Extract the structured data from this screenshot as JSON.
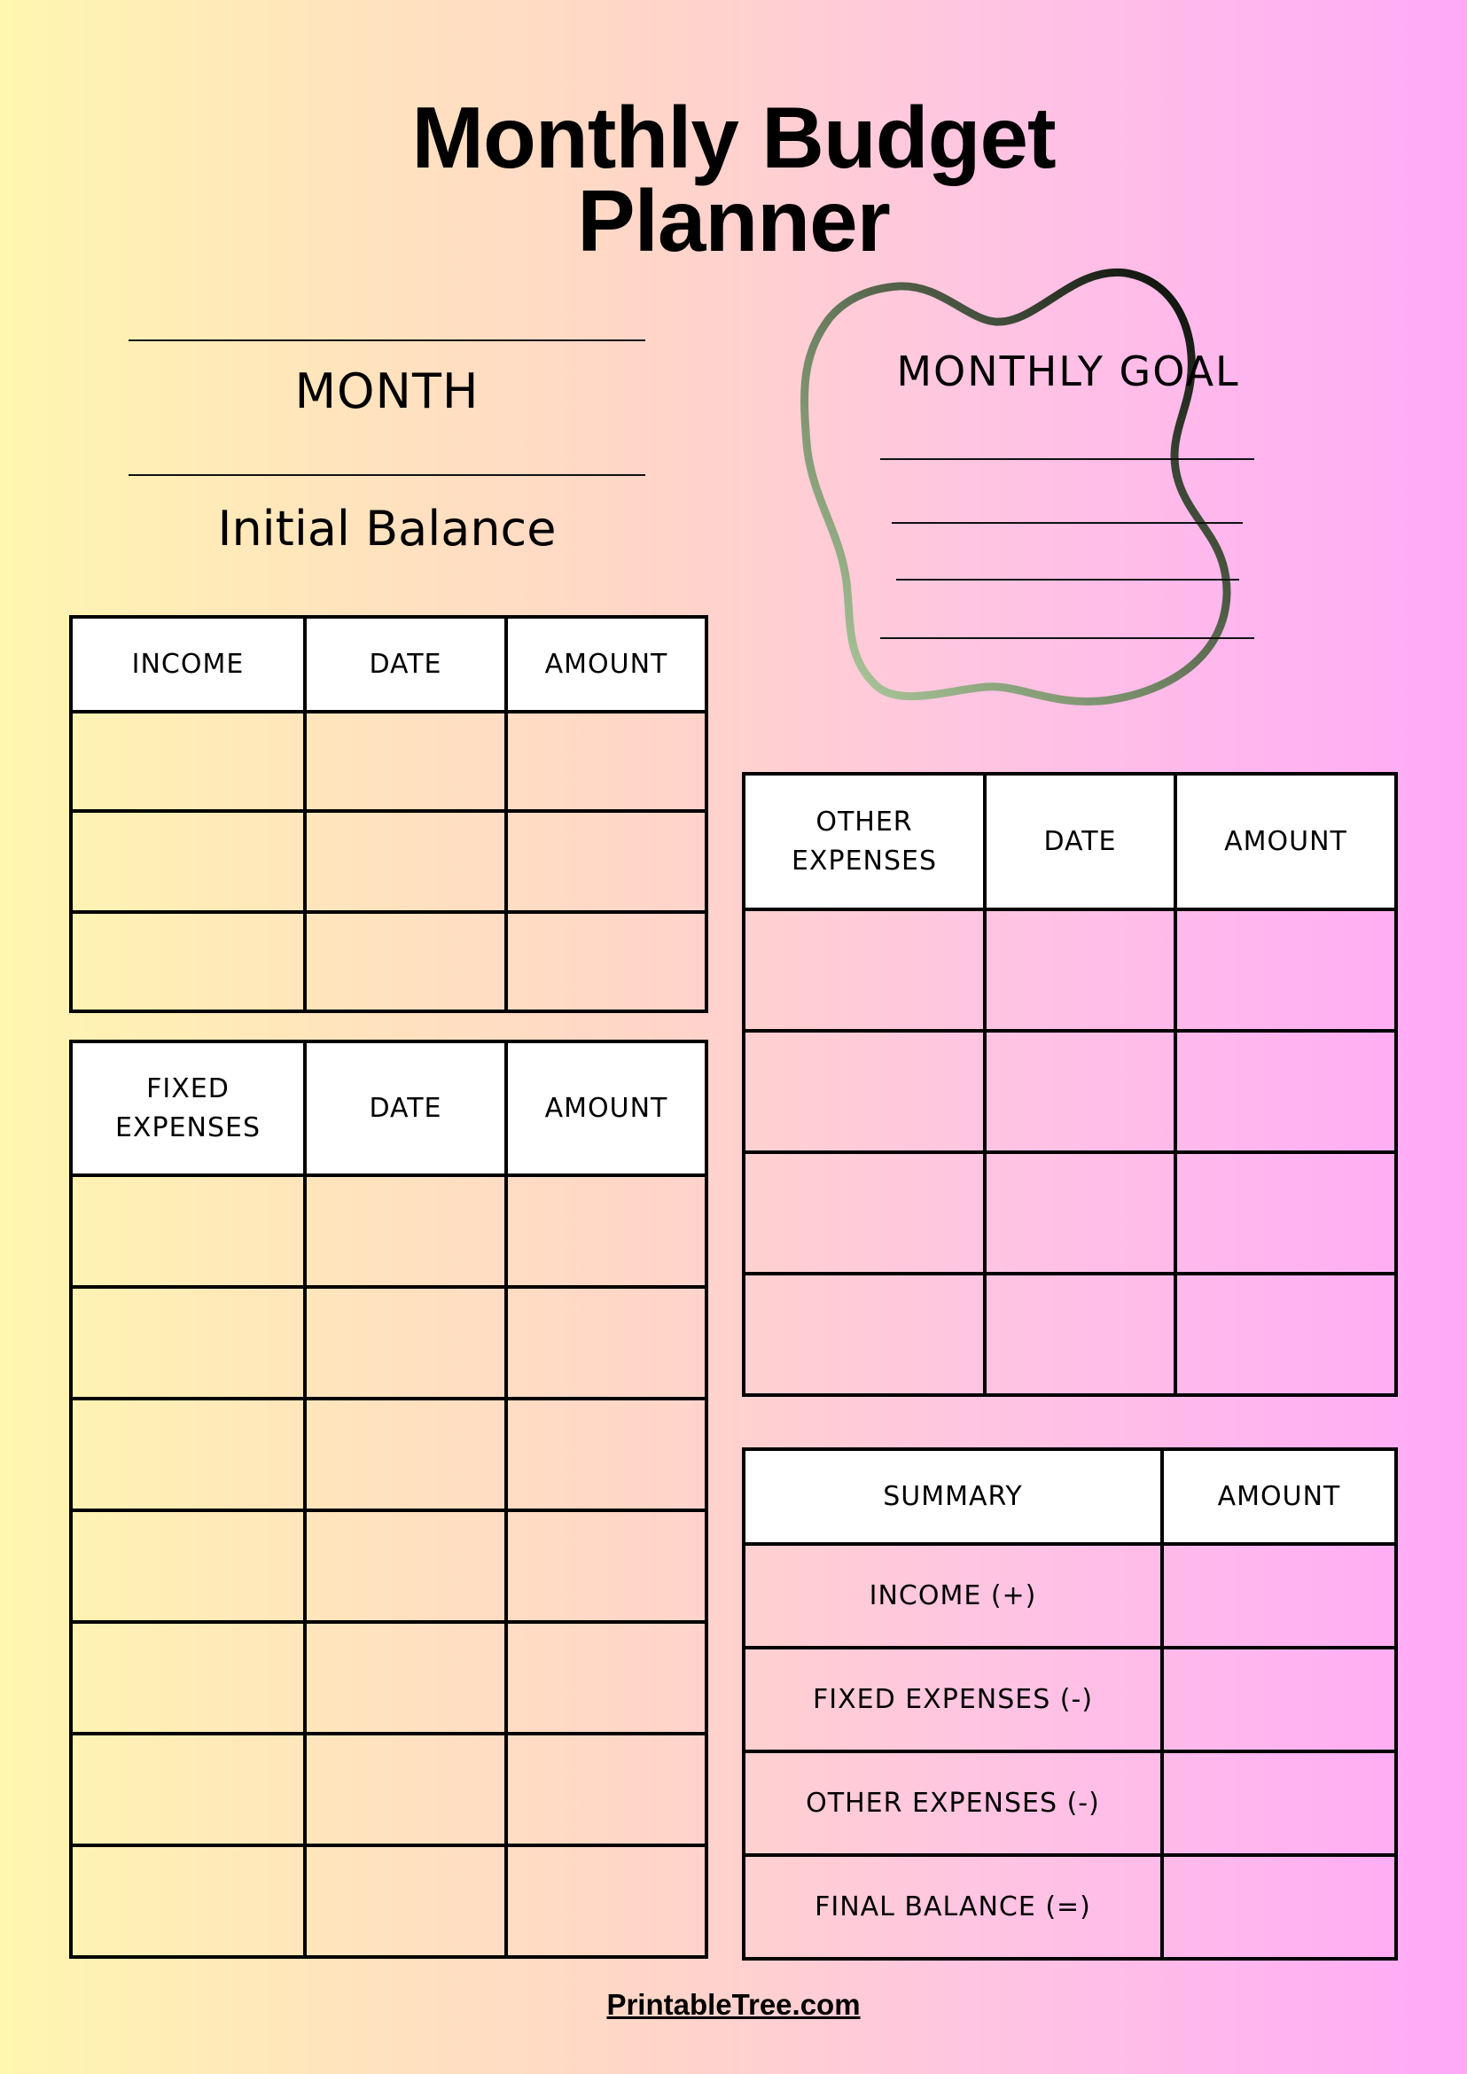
{
  "title": {
    "line1": "Monthly Budget",
    "line2": "Planner"
  },
  "month_label": "MONTH",
  "initial_balance_label": "Initial Balance",
  "monthly_goal": {
    "title": "MONTHLY GOAL",
    "blank_lines": 4,
    "stroke_gradient": [
      "#a8c79a",
      "#000000"
    ]
  },
  "income_table": {
    "headers": [
      "INCOME",
      "DATE",
      "AMOUNT"
    ],
    "rows": 3
  },
  "fixed_expenses_table": {
    "headers": [
      "FIXED EXPENSES",
      "DATE",
      "AMOUNT"
    ],
    "rows": 7
  },
  "other_expenses_table": {
    "headers": [
      "OTHER EXPENSES",
      "DATE",
      "AMOUNT"
    ],
    "rows": 4
  },
  "summary_table": {
    "headers": [
      "SUMMARY",
      "AMOUNT"
    ],
    "rows": [
      "INCOME (+)",
      "FIXED EXPENSES (-)",
      "OTHER EXPENSES (-)",
      "FINAL BALANCE (=)"
    ]
  },
  "footer": "PrintableTree.com",
  "colors": {
    "bg_left": "#fff6b0",
    "bg_mid": "#ffd0d0",
    "bg_right": "#ffa9f6",
    "header_cell": "#ffffff",
    "border": "#000000"
  }
}
